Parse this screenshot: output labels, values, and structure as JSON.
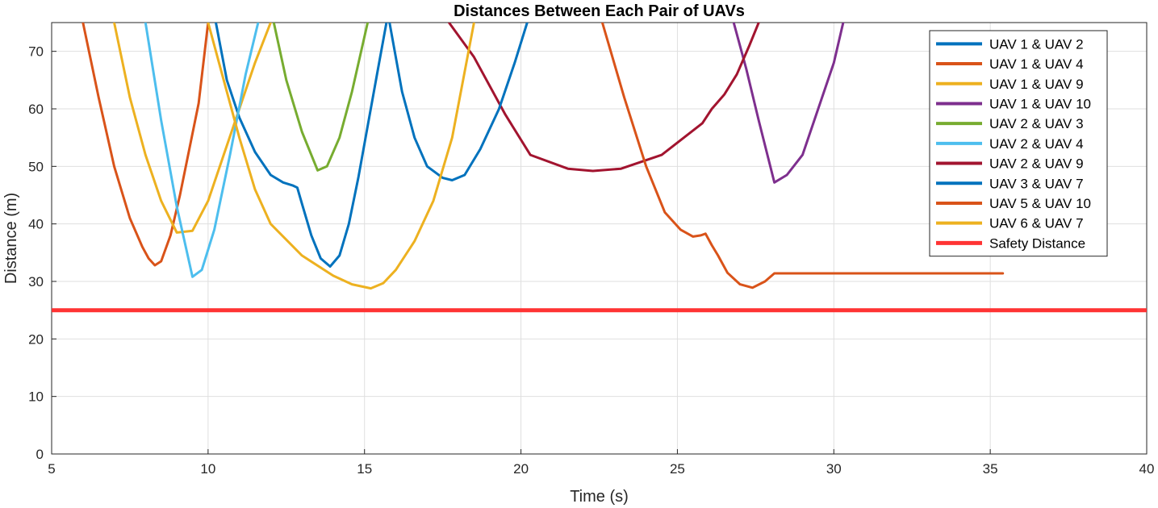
{
  "chart_data": {
    "type": "line",
    "title": "Distances Between Each Pair of UAVs",
    "xlabel": "Time (s)",
    "ylabel": "Distance (m)",
    "xlim": [
      5,
      40
    ],
    "ylim": [
      0,
      75
    ],
    "xticks": [
      5,
      10,
      15,
      20,
      25,
      30,
      35,
      40
    ],
    "yticks": [
      0,
      10,
      20,
      30,
      40,
      50,
      60,
      70
    ],
    "grid": true,
    "legend_position": "top-right",
    "series": [
      {
        "name": "UAV 1 & UAV 2",
        "color": "#0072BD",
        "x": [
          10.25,
          10.6,
          11.0,
          11.5,
          12.0,
          12.4,
          12.7,
          12.85,
          13.0,
          13.3,
          13.6,
          13.9,
          14.2,
          14.5,
          14.8,
          15.1,
          15.4,
          15.6,
          15.7
        ],
        "y": [
          75,
          65,
          58.5,
          52.5,
          48.5,
          47.2,
          46.7,
          46.3,
          43.5,
          38,
          34,
          32.6,
          34.5,
          40,
          48,
          57,
          66,
          72,
          75
        ]
      },
      {
        "name": "UAV 1 & UAV 4",
        "color": "#D95319",
        "x": [
          6.0,
          6.5,
          7.0,
          7.5,
          7.9,
          8.1,
          8.3,
          8.5,
          8.8,
          9.1,
          9.4,
          9.7,
          10.0
        ],
        "y": [
          75,
          62,
          50,
          41,
          36,
          34,
          32.8,
          33.5,
          38,
          45,
          53,
          61,
          75
        ]
      },
      {
        "name": "UAV 1 & UAV 9",
        "color": "#EDB120",
        "x": [
          7.0,
          7.5,
          8.0,
          8.5,
          9.0,
          9.5,
          10.0,
          10.5,
          11.0,
          11.5,
          12.0
        ],
        "y": [
          75,
          62,
          52,
          44,
          38.5,
          38.8,
          44,
          52,
          60,
          68,
          75
        ]
      },
      {
        "name": "UAV 1 & UAV 10",
        "color": "#7E2F8E",
        "x": [
          26.8,
          27.2,
          27.6,
          28.1,
          28.5,
          29.0,
          29.5,
          30.0,
          30.3
        ],
        "y": [
          75,
          67,
          58,
          47.2,
          48.5,
          52,
          60,
          68,
          75
        ]
      },
      {
        "name": "UAV 2 & UAV 3",
        "color": "#77AC30",
        "x": [
          12.1,
          12.5,
          13.0,
          13.5,
          13.8,
          14.2,
          14.6,
          15.1
        ],
        "y": [
          75,
          65,
          56,
          49.3,
          50,
          55,
          63,
          75
        ]
      },
      {
        "name": "UAV 2 & UAV 4",
        "color": "#4DBEEE",
        "x": [
          8.0,
          8.5,
          9.0,
          9.5,
          9.8,
          10.2,
          10.7,
          11.2,
          11.6
        ],
        "y": [
          75,
          58,
          43,
          30.8,
          32,
          39,
          52,
          66,
          75
        ]
      },
      {
        "name": "UAV 2 & UAV 9",
        "color": "#A2142F",
        "x": [
          17.7,
          18.5,
          19.5,
          20.3,
          21.5,
          22.3,
          23.2,
          24.5,
          25.8,
          26.1,
          26.5,
          26.9,
          27.3,
          27.6
        ],
        "y": [
          75,
          69,
          59,
          52,
          49.6,
          49.2,
          49.6,
          52,
          57.5,
          60,
          62.5,
          66,
          71,
          75
        ]
      },
      {
        "name": "UAV 3 & UAV 7",
        "color": "#0072BD",
        "x": [
          15.8,
          16.2,
          16.6,
          17.0,
          17.5,
          17.8,
          18.2,
          18.7,
          19.3,
          19.8,
          20.2
        ],
        "y": [
          75,
          63,
          55,
          50,
          48,
          47.6,
          48.5,
          53,
          60,
          68,
          75
        ]
      },
      {
        "name": "UAV 5 & UAV 10",
        "color": "#D95319",
        "x": [
          22.6,
          23.3,
          24.0,
          24.6,
          25.1,
          25.5,
          25.75,
          25.9,
          26.1,
          26.3,
          26.6,
          27.0,
          27.4,
          27.8,
          28.1,
          35.4
        ],
        "y": [
          75,
          62,
          50,
          42,
          39,
          37.8,
          38,
          38.3,
          36.3,
          34.5,
          31.5,
          29.5,
          28.9,
          30,
          31.4,
          31.4
        ]
      },
      {
        "name": "UAV 6 & UAV 7",
        "color": "#EDB120",
        "x": [
          10.0,
          10.5,
          11.0,
          11.5,
          12.0,
          13.0,
          14.0,
          14.6,
          15.2,
          15.6,
          16.0,
          16.6,
          17.2,
          17.8,
          18.5
        ],
        "y": [
          75,
          65,
          55,
          46,
          40,
          34.5,
          31,
          29.5,
          28.8,
          29.7,
          32,
          37,
          44,
          55,
          75
        ]
      },
      {
        "name": "Safety Distance",
        "color": "#FF3333",
        "x": [
          5,
          40
        ],
        "y": [
          25,
          25
        ]
      }
    ]
  }
}
